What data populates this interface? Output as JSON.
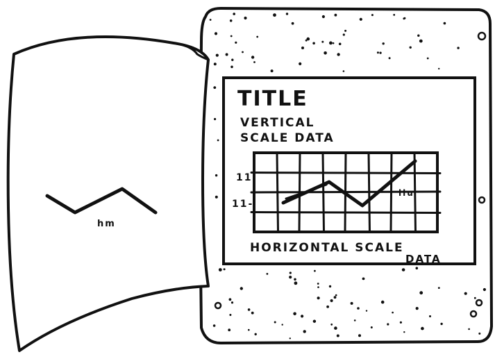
{
  "board": {
    "title": "TITLE",
    "vertical_label_line1": "VERTICAL",
    "vertical_label_line2": "SCALE DATA",
    "horizontal_label_line1": "HORIZONTAL SCALE",
    "horizontal_label_line2": "DATA",
    "tick_upper": "11",
    "tick_lower": "11-",
    "annotation": "llu"
  },
  "sheet": {
    "annotation": "hm"
  },
  "colors": {
    "ink": "#111111",
    "paper": "#ffffff"
  }
}
